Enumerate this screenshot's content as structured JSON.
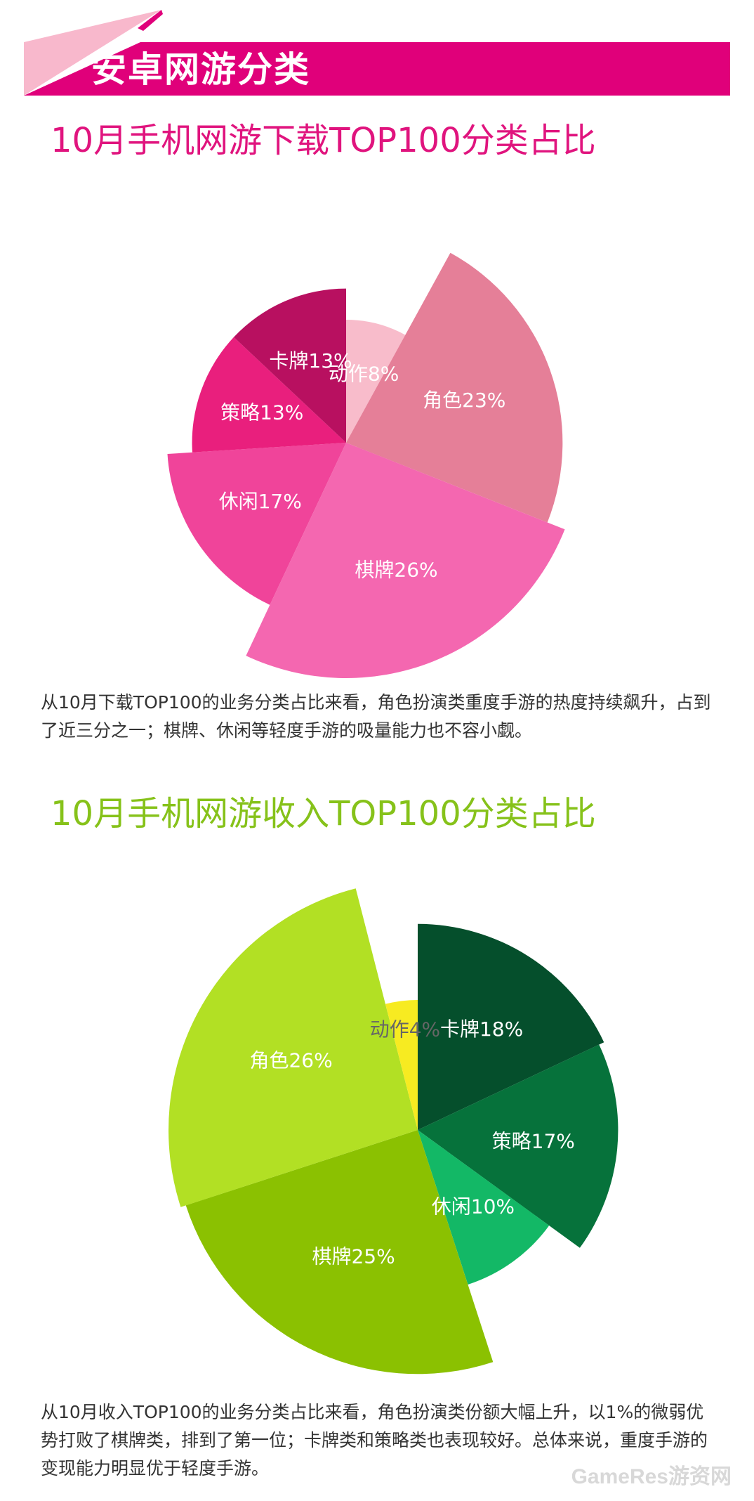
{
  "banner": {
    "title": "安卓网游分类",
    "color": "#e0007a",
    "accent": "#f8b8cc"
  },
  "sections": [
    {
      "title": "10月手机网游下载TOP100分类占比",
      "title_color": "#e0147e",
      "description": "从10月下载TOP100的业务分类占比来看，角色扮演类重度手游的热度持续飙升，占到了近三分之一；棋牌、休闲等轻度手游的吸量能力也不容小觑。"
    },
    {
      "title": "10月手机网游收入TOP100分类占比",
      "title_color": "#86c21a",
      "description": "从10月收入TOP100的业务分类占比来看，角色扮演类份额大幅上升，以1%的微弱优势打败了棋牌类，排到了第一位；卡牌类和策略类也表现较好。总体来说，重度手游的变现能力明显优于轻度手游。"
    }
  ],
  "chart_data": [
    {
      "type": "pie",
      "title": "10月手机网游下载TOP100分类占比",
      "variant": "polar-area",
      "slices": [
        {
          "label": "动作8%",
          "category": "动作",
          "value": 8,
          "color": "#f8bccb"
        },
        {
          "label": "角色23%",
          "category": "角色",
          "value": 23,
          "color": "#e57f98"
        },
        {
          "label": "棋牌26%",
          "category": "棋牌",
          "value": 26,
          "color": "#f467b0"
        },
        {
          "label": "休闲17%",
          "category": "休闲",
          "value": 17,
          "color": "#f0449a"
        },
        {
          "label": "策略13%",
          "category": "策略",
          "value": 13,
          "color": "#e91f7d"
        },
        {
          "label": "卡牌13%",
          "category": "卡牌",
          "value": 13,
          "color": "#b81060"
        }
      ]
    },
    {
      "type": "pie",
      "title": "10月手机网游收入TOP100分类占比",
      "variant": "polar-area",
      "slices": [
        {
          "label": "卡牌18%",
          "category": "卡牌",
          "value": 18,
          "color": "#054f2c"
        },
        {
          "label": "策略17%",
          "category": "策略",
          "value": 17,
          "color": "#06723b"
        },
        {
          "label": "休闲10%",
          "category": "休闲",
          "value": 10,
          "color": "#13b866"
        },
        {
          "label": "棋牌25%",
          "category": "棋牌",
          "value": 25,
          "color": "#8bc101"
        },
        {
          "label": "角色26%",
          "category": "角色",
          "value": 26,
          "color": "#b2e024"
        },
        {
          "label": "动作4%",
          "category": "动作",
          "value": 4,
          "color": "#f7eb21",
          "label_color": "#666666"
        }
      ]
    }
  ],
  "watermark": "GameRes游资网"
}
